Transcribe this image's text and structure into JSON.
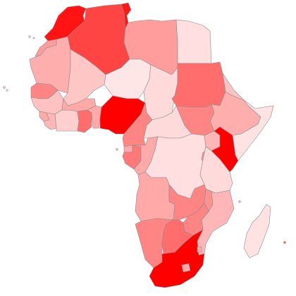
{
  "map": {
    "region": "Africa",
    "legend": "none",
    "shading": {
      "scale_low": "#fff2f2",
      "scale_high": "#ff0000",
      "border": "#8a8a8a",
      "background": "#ffffff"
    },
    "countries": [
      {
        "name": "morocco",
        "level": 0.92
      },
      {
        "name": "western-sahara",
        "level": 0.35
      },
      {
        "name": "algeria",
        "level": 0.72
      },
      {
        "name": "tunisia",
        "level": 0.9
      },
      {
        "name": "libya",
        "level": 0.35
      },
      {
        "name": "egypt",
        "level": 0.08
      },
      {
        "name": "mauritania",
        "level": 0.28
      },
      {
        "name": "mali",
        "level": 0.18
      },
      {
        "name": "niger",
        "level": 0.05
      },
      {
        "name": "chad",
        "level": 0.1
      },
      {
        "name": "sudan",
        "level": 0.55
      },
      {
        "name": "south-sudan",
        "level": 0.45
      },
      {
        "name": "ethiopia",
        "level": 0.28
      },
      {
        "name": "eritrea",
        "level": 0.2
      },
      {
        "name": "somalia",
        "level": 0.06
      },
      {
        "name": "senegal",
        "level": 0.45
      },
      {
        "name": "guinea",
        "level": 0.2
      },
      {
        "name": "sierra-leone",
        "level": 0.3
      },
      {
        "name": "liberia",
        "level": 0.25
      },
      {
        "name": "ivory-coast",
        "level": 0.15
      },
      {
        "name": "burkina-faso",
        "level": 0.3
      },
      {
        "name": "ghana",
        "level": 0.55
      },
      {
        "name": "togo-benin",
        "level": 0.3
      },
      {
        "name": "nigeria",
        "level": 1.0
      },
      {
        "name": "cameroon",
        "level": 0.45
      },
      {
        "name": "central-african-republic",
        "level": 0.1
      },
      {
        "name": "equatorial-guinea",
        "level": 0.3
      },
      {
        "name": "gabon",
        "level": 0.5
      },
      {
        "name": "congo",
        "level": 0.3
      },
      {
        "name": "dr-congo",
        "level": 0.08
      },
      {
        "name": "uganda",
        "level": 0.25
      },
      {
        "name": "kenya",
        "level": 1.0
      },
      {
        "name": "rwanda-burundi",
        "level": 0.4
      },
      {
        "name": "tanzania",
        "level": 0.1
      },
      {
        "name": "angola",
        "level": 0.3
      },
      {
        "name": "zambia",
        "level": 0.45
      },
      {
        "name": "malawi",
        "level": 0.4
      },
      {
        "name": "mozambique",
        "level": 0.25
      },
      {
        "name": "zimbabwe",
        "level": 0.45
      },
      {
        "name": "namibia",
        "level": 0.45
      },
      {
        "name": "botswana",
        "level": 0.55
      },
      {
        "name": "south-africa",
        "level": 1.0
      },
      {
        "name": "lesotho",
        "level": 0.3
      },
      {
        "name": "swaziland",
        "level": 0.3
      },
      {
        "name": "madagascar",
        "level": 0.06
      },
      {
        "name": "cape-verde",
        "level": 0.2
      },
      {
        "name": "canary-islands",
        "level": 0.2
      },
      {
        "name": "sao-tome",
        "level": 0.3
      },
      {
        "name": "comoros",
        "level": 0.3
      },
      {
        "name": "mauritius",
        "level": 0.6
      }
    ]
  }
}
